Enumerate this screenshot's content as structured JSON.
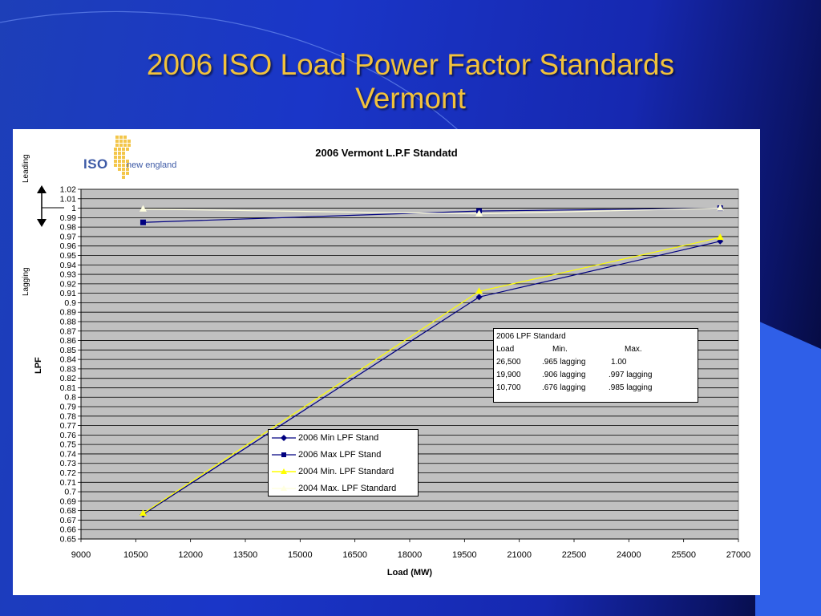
{
  "slide": {
    "title_line1": "2006 ISO Load Power Factor Standards",
    "title_line2": "Vermont",
    "title_color": "#f2c23c"
  },
  "logo": {
    "iso": "ISO",
    "name": "new england",
    "color": "#3d5aa6"
  },
  "side_labels": {
    "leading": "Leading",
    "lagging": "Lagging"
  },
  "standard_box": {
    "title": "2006 LPF Standard",
    "header": [
      "Load",
      "Min.",
      "Max."
    ],
    "rows": [
      [
        "26,500",
        ".965 lagging",
        "1.00"
      ],
      [
        "19,900",
        ".906 lagging",
        ".997 lagging"
      ],
      [
        "10,700",
        ".676 lagging",
        ".985 lagging"
      ]
    ]
  },
  "chart_data": {
    "type": "line",
    "title": "2006 Vermont L.P.F Standatd",
    "xlabel": "Load (MW)",
    "ylabel": "LPF",
    "xlim": [
      9000,
      27000
    ],
    "ylim": [
      0.65,
      1.02
    ],
    "x_ticks": [
      "9000",
      "10500",
      "12000",
      "13500",
      "15000",
      "16500",
      "18000",
      "19500",
      "21000",
      "22500",
      "24000",
      "25500",
      "27000"
    ],
    "y_ticks": [
      "0.65",
      "0.66",
      "0.67",
      "0.68",
      "0.69",
      "0.7",
      "0.71",
      "0.72",
      "0.73",
      "0.74",
      "0.75",
      "0.76",
      "0.77",
      "0.78",
      "0.79",
      "0.8",
      "0.81",
      "0.82",
      "0.83",
      "0.84",
      "0.85",
      "0.86",
      "0.87",
      "0.88",
      "0.89",
      "0.9",
      "0.91",
      "0.92",
      "0.93",
      "0.94",
      "0.95",
      "0.96",
      "0.97",
      "0.98",
      "0.99",
      "1",
      "1.01",
      "1.02"
    ],
    "grid": true,
    "plot_background": "#c0c0c0",
    "legend_position": "lower-center",
    "series": [
      {
        "name": "2006 Min LPF Stand",
        "marker": "diamond",
        "color": "#000080",
        "x": [
          10700,
          19900,
          26500
        ],
        "y": [
          0.676,
          0.906,
          0.965
        ]
      },
      {
        "name": "2006 Max LPF Stand",
        "marker": "square",
        "color": "#000080",
        "x": [
          10700,
          19900,
          26500
        ],
        "y": [
          0.985,
          0.997,
          1.0
        ]
      },
      {
        "name": "2004 Min. LPF Standard",
        "marker": "triangle",
        "color": "#ffff00",
        "x": [
          10700,
          19900,
          26500
        ],
        "y": [
          0.677,
          0.912,
          0.969
        ]
      },
      {
        "name": "2004 Max. LPF Standard",
        "marker": "triangle",
        "color": "#ffffe0",
        "x": [
          10700,
          19900,
          26500
        ],
        "y": [
          0.999,
          0.994,
          1.0
        ]
      }
    ]
  }
}
